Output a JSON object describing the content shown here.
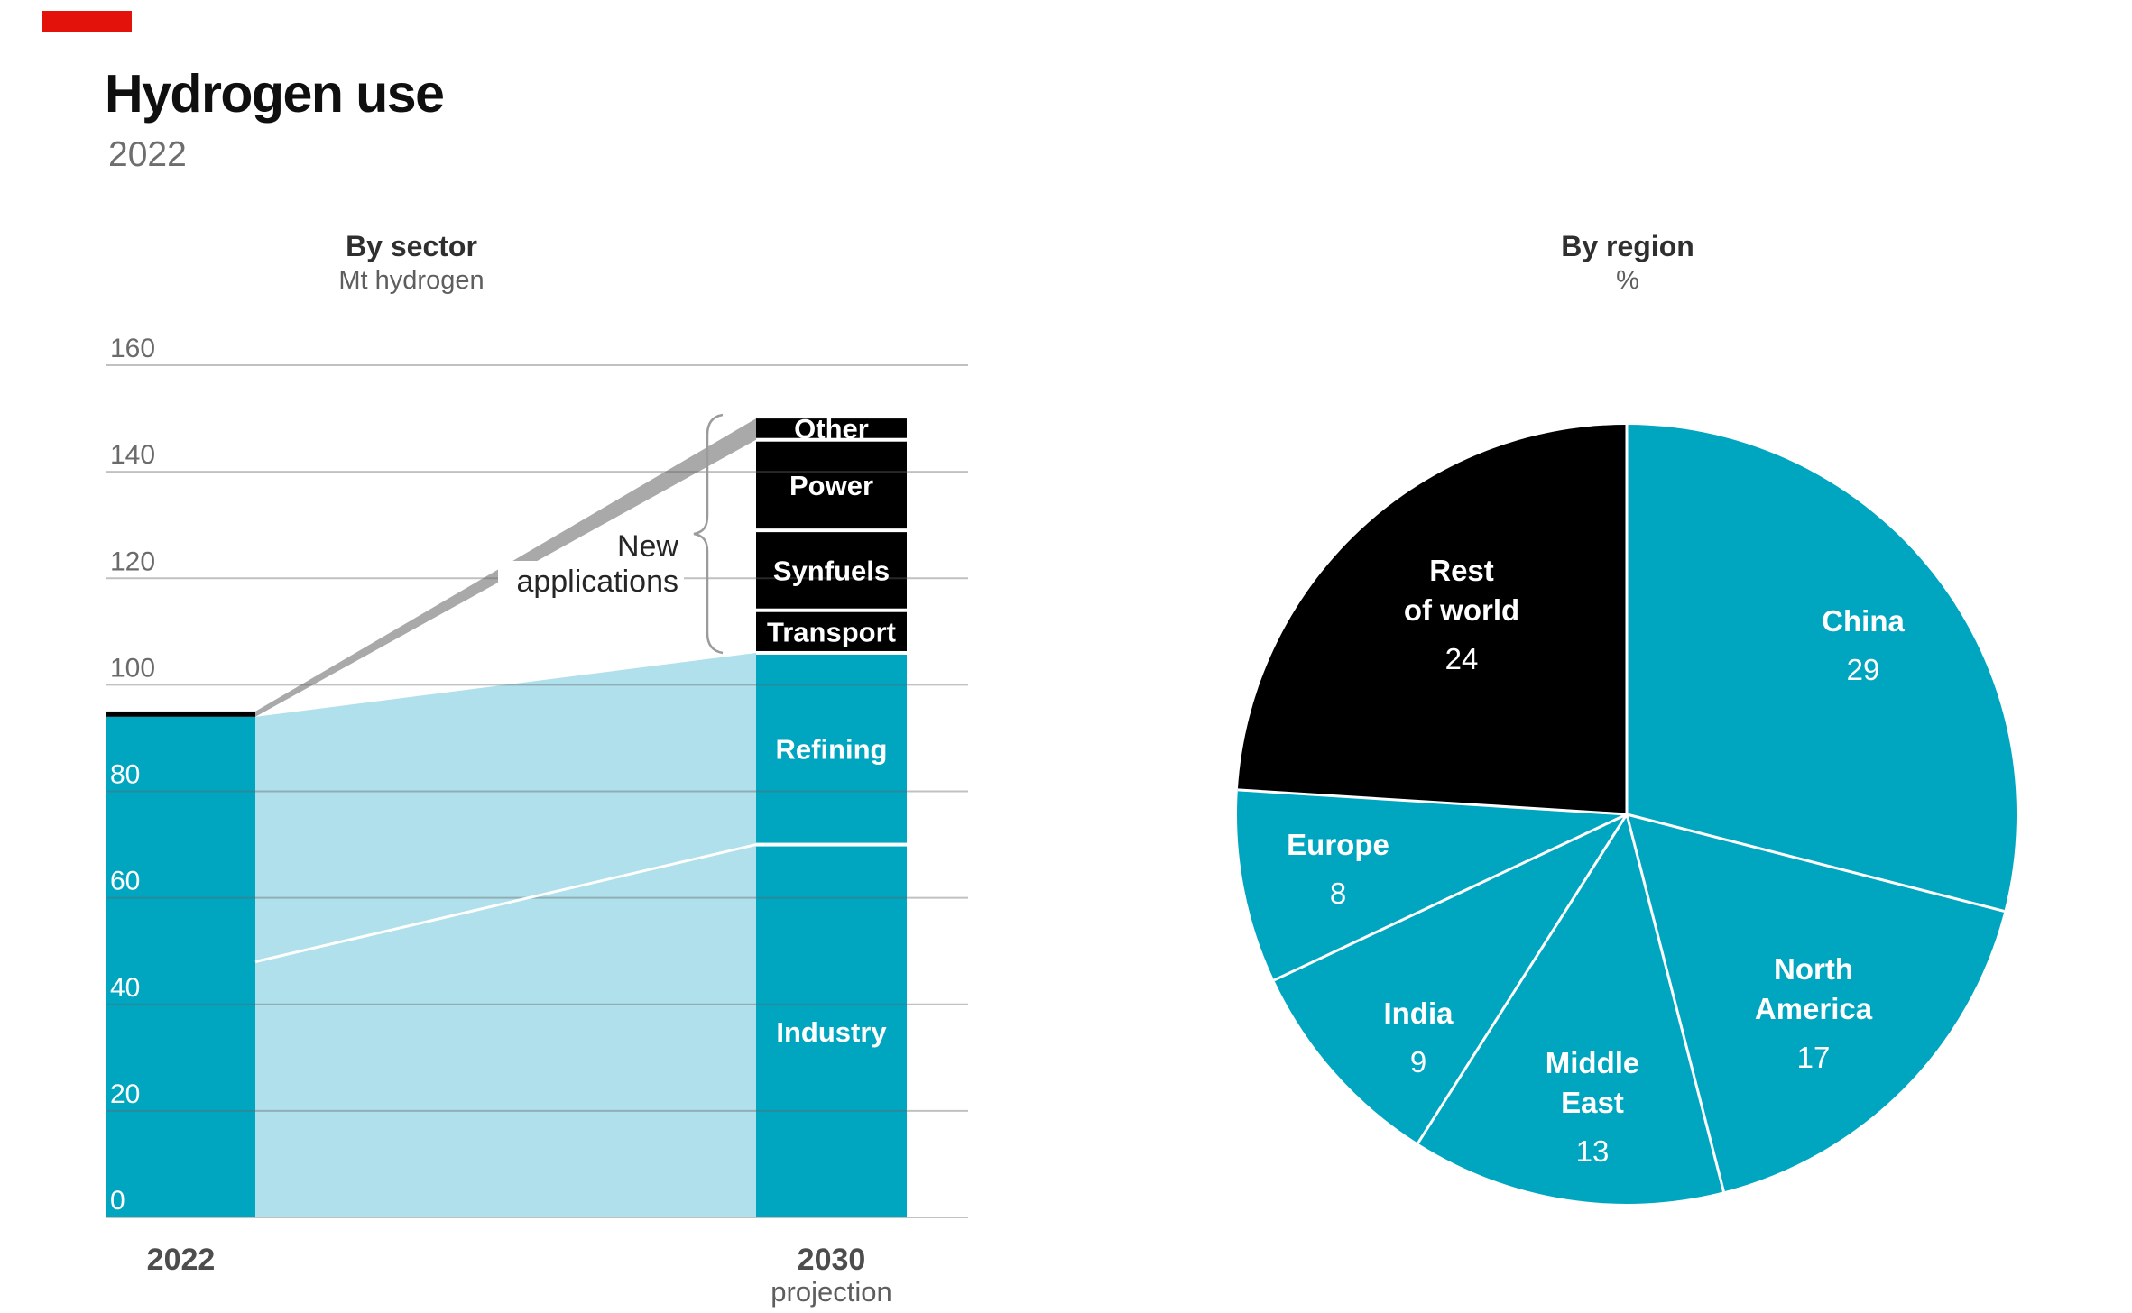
{
  "header": {
    "title": "Hydrogen use",
    "subtitle": "2022"
  },
  "colors": {
    "accent": "#e3120b",
    "teal": "#00a6c0",
    "light_band": "#afe0eb",
    "gray_band": "#a9a9a9",
    "black": "#000000",
    "tick_gray": "#6a6a6a",
    "white": "#ffffff"
  },
  "chart_data": [
    {
      "type": "flow-stacked-bar",
      "title": "By sector",
      "unit": "Mt hydrogen",
      "ylabel": "Mt hydrogen",
      "ylim": [
        0,
        160
      ],
      "axis_ticks": [
        0,
        20,
        40,
        60,
        80,
        100,
        120,
        140,
        160
      ],
      "grid": true,
      "x_labels": {
        "left": "2022",
        "right": "2030",
        "right_sub": "projection"
      },
      "annotation": {
        "lines": [
          "New",
          "applications"
        ]
      },
      "bars": [
        {
          "year": "2022",
          "total": 95,
          "segments": [
            {
              "name": "Industry",
              "value": 48,
              "color": "teal",
              "show_label": false
            },
            {
              "name": "Refining",
              "value": 46,
              "color": "teal",
              "show_label": false
            },
            {
              "name": "New applications",
              "value": 1,
              "color": "black",
              "show_label": false
            }
          ]
        },
        {
          "year": "2030",
          "total": 150,
          "segments": [
            {
              "name": "Industry",
              "value": 70,
              "color": "teal",
              "show_label": true
            },
            {
              "name": "Refining",
              "value": 36,
              "color": "teal",
              "show_label": true
            },
            {
              "name": "Transport",
              "value": 8,
              "color": "black",
              "show_label": true
            },
            {
              "name": "Synfuels",
              "value": 15,
              "color": "black",
              "show_label": true
            },
            {
              "name": "Power",
              "value": 17,
              "color": "black",
              "show_label": true
            },
            {
              "name": "Other",
              "value": 4,
              "color": "black",
              "show_label": true
            }
          ]
        }
      ],
      "flows": [
        {
          "name": "existing uses",
          "color": "light_band"
        },
        {
          "name": "new applications",
          "color": "gray_band"
        }
      ]
    },
    {
      "type": "pie",
      "title": "By region",
      "unit": "%",
      "legend_position": "in-slice",
      "slices": [
        {
          "name": "China",
          "value": 29,
          "color": "teal",
          "label_lines": [
            "China"
          ]
        },
        {
          "name": "North America",
          "value": 17,
          "color": "teal",
          "label_lines": [
            "North",
            "America"
          ]
        },
        {
          "name": "Middle East",
          "value": 13,
          "color": "teal",
          "label_lines": [
            "Middle",
            "East"
          ]
        },
        {
          "name": "India",
          "value": 9,
          "color": "teal",
          "label_lines": [
            "India"
          ]
        },
        {
          "name": "Europe",
          "value": 8,
          "color": "teal",
          "label_lines": [
            "Europe"
          ]
        },
        {
          "name": "Rest of world",
          "value": 24,
          "color": "black",
          "label_lines": [
            "Rest",
            "of world"
          ]
        }
      ]
    }
  ]
}
